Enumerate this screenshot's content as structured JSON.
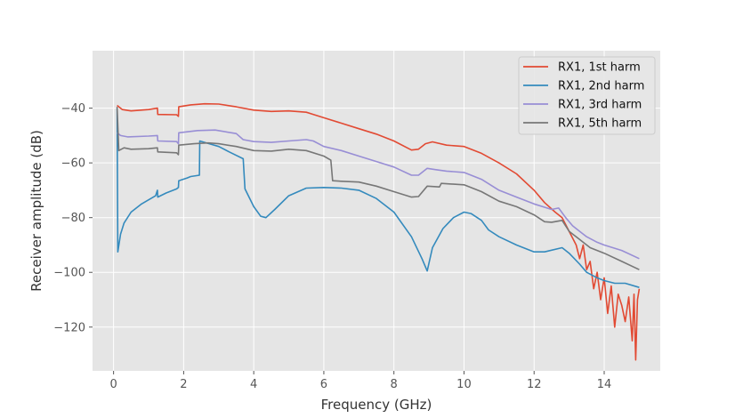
{
  "chart_data": {
    "type": "line",
    "title": "",
    "xlabel": "Frequency (GHz)",
    "ylabel": "Receiver amplitude (dB)",
    "xlim": [
      -0.6,
      15.6
    ],
    "ylim": [
      -136,
      -19
    ],
    "xticks": [
      0,
      2,
      4,
      6,
      8,
      10,
      12,
      14
    ],
    "yticks": [
      -120,
      -100,
      -80,
      -60,
      -40
    ],
    "grid": true,
    "legend_position": "top-right",
    "series": [
      {
        "name": "RX1, 1st harm",
        "color": "#E24A33",
        "points": [
          [
            0.1,
            -39
          ],
          [
            0.25,
            -40.5
          ],
          [
            0.5,
            -41
          ],
          [
            1.0,
            -40.5
          ],
          [
            1.25,
            -40
          ],
          [
            1.26,
            -42.3
          ],
          [
            1.8,
            -42.4
          ],
          [
            1.85,
            -43
          ],
          [
            1.86,
            -39.5
          ],
          [
            2.2,
            -38.8
          ],
          [
            2.6,
            -38.4
          ],
          [
            3.0,
            -38.5
          ],
          [
            3.5,
            -39.5
          ],
          [
            4.0,
            -40.7
          ],
          [
            4.5,
            -41.2
          ],
          [
            5.0,
            -41
          ],
          [
            5.5,
            -41.5
          ],
          [
            6.0,
            -43.5
          ],
          [
            6.5,
            -45.5
          ],
          [
            7.0,
            -47.5
          ],
          [
            7.5,
            -49.5
          ],
          [
            8.0,
            -52
          ],
          [
            8.5,
            -55.3
          ],
          [
            8.7,
            -55
          ],
          [
            8.9,
            -53
          ],
          [
            9.1,
            -52.3
          ],
          [
            9.5,
            -53.5
          ],
          [
            10.0,
            -54
          ],
          [
            10.5,
            -56.5
          ],
          [
            11.0,
            -60
          ],
          [
            11.5,
            -64
          ],
          [
            12.0,
            -70
          ],
          [
            12.3,
            -74.5
          ],
          [
            12.6,
            -78
          ],
          [
            12.8,
            -80
          ],
          [
            13.0,
            -85
          ],
          [
            13.2,
            -90
          ],
          [
            13.3,
            -95
          ],
          [
            13.4,
            -90
          ],
          [
            13.5,
            -99
          ],
          [
            13.6,
            -96
          ],
          [
            13.7,
            -106
          ],
          [
            13.8,
            -100
          ],
          [
            13.9,
            -110
          ],
          [
            14.0,
            -102
          ],
          [
            14.1,
            -115
          ],
          [
            14.2,
            -105
          ],
          [
            14.3,
            -120
          ],
          [
            14.4,
            -108
          ],
          [
            14.5,
            -112
          ],
          [
            14.6,
            -118
          ],
          [
            14.7,
            -109
          ],
          [
            14.8,
            -125
          ],
          [
            14.85,
            -108
          ],
          [
            14.9,
            -132
          ],
          [
            14.95,
            -110
          ],
          [
            15.0,
            -106
          ]
        ]
      },
      {
        "name": "RX1, 2nd harm",
        "color": "#348ABD",
        "points": [
          [
            0.1,
            -40
          ],
          [
            0.12,
            -92.5
          ],
          [
            0.2,
            -86
          ],
          [
            0.3,
            -82
          ],
          [
            0.5,
            -78
          ],
          [
            0.8,
            -75
          ],
          [
            1.0,
            -73.5
          ],
          [
            1.2,
            -72
          ],
          [
            1.25,
            -70
          ],
          [
            1.26,
            -72.5
          ],
          [
            1.5,
            -71
          ],
          [
            1.8,
            -69.5
          ],
          [
            1.85,
            -69
          ],
          [
            1.86,
            -66.5
          ],
          [
            2.1,
            -65.5
          ],
          [
            2.2,
            -65
          ],
          [
            2.45,
            -64.5
          ],
          [
            2.46,
            -52
          ],
          [
            2.6,
            -52.5
          ],
          [
            3.0,
            -54
          ],
          [
            3.3,
            -56
          ],
          [
            3.7,
            -58.5
          ],
          [
            3.75,
            -69.5
          ],
          [
            4.0,
            -76
          ],
          [
            4.2,
            -79.5
          ],
          [
            4.35,
            -80
          ],
          [
            4.6,
            -77
          ],
          [
            5.0,
            -72
          ],
          [
            5.5,
            -69.2
          ],
          [
            6.0,
            -69
          ],
          [
            6.5,
            -69.2
          ],
          [
            7.0,
            -70
          ],
          [
            7.5,
            -73
          ],
          [
            8.0,
            -78
          ],
          [
            8.5,
            -87
          ],
          [
            8.8,
            -95
          ],
          [
            8.95,
            -99.5
          ],
          [
            9.1,
            -91
          ],
          [
            9.4,
            -84
          ],
          [
            9.7,
            -80
          ],
          [
            10.0,
            -78
          ],
          [
            10.2,
            -78.5
          ],
          [
            10.5,
            -81
          ],
          [
            10.7,
            -84.5
          ],
          [
            11.0,
            -87
          ],
          [
            11.5,
            -90
          ],
          [
            12.0,
            -92.5
          ],
          [
            12.3,
            -92.5
          ],
          [
            12.8,
            -91
          ],
          [
            13.0,
            -93
          ],
          [
            13.3,
            -97
          ],
          [
            13.5,
            -100
          ],
          [
            13.8,
            -102
          ],
          [
            14.0,
            -103
          ],
          [
            14.3,
            -104
          ],
          [
            14.6,
            -104
          ],
          [
            15.0,
            -105.5
          ]
        ]
      },
      {
        "name": "RX1, 3rd harm",
        "color": "#988ED5",
        "points": [
          [
            0.1,
            -49
          ],
          [
            0.2,
            -50
          ],
          [
            0.4,
            -50.5
          ],
          [
            1.0,
            -50.2
          ],
          [
            1.25,
            -50
          ],
          [
            1.26,
            -52
          ],
          [
            1.8,
            -52.2
          ],
          [
            1.85,
            -53
          ],
          [
            1.86,
            -49
          ],
          [
            2.4,
            -48.2
          ],
          [
            2.9,
            -48
          ],
          [
            3.5,
            -49.3
          ],
          [
            3.7,
            -51.5
          ],
          [
            4.0,
            -52.2
          ],
          [
            4.5,
            -52.5
          ],
          [
            5.0,
            -52
          ],
          [
            5.5,
            -51.5
          ],
          [
            5.7,
            -52
          ],
          [
            6.0,
            -54
          ],
          [
            6.5,
            -55.5
          ],
          [
            7.0,
            -57.5
          ],
          [
            7.5,
            -59.5
          ],
          [
            8.0,
            -61.5
          ],
          [
            8.5,
            -64.5
          ],
          [
            8.7,
            -64.5
          ],
          [
            8.95,
            -62
          ],
          [
            9.2,
            -62.5
          ],
          [
            9.5,
            -63
          ],
          [
            10.0,
            -63.5
          ],
          [
            10.5,
            -66
          ],
          [
            11.0,
            -70
          ],
          [
            11.5,
            -72.5
          ],
          [
            12.0,
            -75
          ],
          [
            12.5,
            -77
          ],
          [
            12.7,
            -76.5
          ],
          [
            12.9,
            -80
          ],
          [
            13.1,
            -83
          ],
          [
            13.3,
            -85
          ],
          [
            13.5,
            -87
          ],
          [
            13.8,
            -89
          ],
          [
            14.0,
            -90
          ],
          [
            14.5,
            -92
          ],
          [
            15.0,
            -95
          ]
        ]
      },
      {
        "name": "RX1, 5th harm",
        "color": "#777777",
        "points": [
          [
            0.1,
            -39.5
          ],
          [
            0.15,
            -55.5
          ],
          [
            0.3,
            -54.5
          ],
          [
            0.5,
            -55
          ],
          [
            1.0,
            -54.8
          ],
          [
            1.25,
            -54.5
          ],
          [
            1.26,
            -56
          ],
          [
            1.8,
            -56.3
          ],
          [
            1.85,
            -57
          ],
          [
            1.86,
            -53.5
          ],
          [
            2.3,
            -53
          ],
          [
            2.7,
            -52.7
          ],
          [
            3.0,
            -53
          ],
          [
            3.5,
            -54
          ],
          [
            4.0,
            -55.5
          ],
          [
            4.5,
            -55.7
          ],
          [
            5.0,
            -55
          ],
          [
            5.5,
            -55.5
          ],
          [
            6.0,
            -57.5
          ],
          [
            6.2,
            -59
          ],
          [
            6.25,
            -66.5
          ],
          [
            6.5,
            -66.7
          ],
          [
            7.0,
            -67
          ],
          [
            7.5,
            -68.5
          ],
          [
            8.0,
            -70.5
          ],
          [
            8.5,
            -72.5
          ],
          [
            8.7,
            -72.3
          ],
          [
            8.95,
            -68.5
          ],
          [
            9.3,
            -68.8
          ],
          [
            9.35,
            -67.5
          ],
          [
            10.0,
            -68
          ],
          [
            10.5,
            -70.5
          ],
          [
            11.0,
            -74
          ],
          [
            11.5,
            -76
          ],
          [
            12.0,
            -79
          ],
          [
            12.3,
            -81.5
          ],
          [
            12.5,
            -81.7
          ],
          [
            12.8,
            -81
          ],
          [
            13.0,
            -85
          ],
          [
            13.3,
            -88
          ],
          [
            13.6,
            -91
          ],
          [
            14.0,
            -93
          ],
          [
            14.5,
            -96
          ],
          [
            15.0,
            -99
          ]
        ]
      }
    ]
  }
}
